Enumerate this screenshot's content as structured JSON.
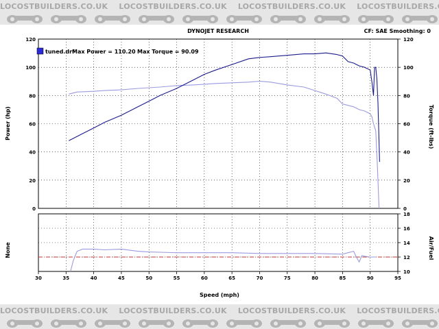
{
  "watermark": {
    "text": "LOCOSTBUILDERS.CO.UK",
    "color": "#a8a8a8"
  },
  "chart_data": {
    "type": "line",
    "header": {
      "title": "DYNOJET RESEARCH",
      "right": "CF: SAE  Smoothing: 0"
    },
    "legend": {
      "file": "tuned.drf",
      "max_power_label": "Max Power = 110.20",
      "max_torque_label": "Max Torque = 90.09",
      "swatch_color": "#2b2bd6"
    },
    "xlabel": "Speed (mph)",
    "xlim": [
      30,
      95
    ],
    "x_ticks": [
      "30",
      "35",
      "40",
      "45",
      "50",
      "55",
      "60",
      "65",
      "70",
      "75",
      "80",
      "85",
      "90",
      "95"
    ],
    "upper_panel": {
      "ylabel_left": "Power (hp)",
      "ylabel_right": "Torque (ft-lbs)",
      "ylim": [
        0,
        120
      ],
      "y_ticks": [
        "0",
        "20",
        "40",
        "60",
        "80",
        "100",
        "120"
      ],
      "series": [
        {
          "name": "Power",
          "color": "#1a1a8c",
          "x": [
            35.5,
            38,
            40,
            42,
            45,
            48,
            50,
            52,
            55,
            58,
            60,
            62,
            65,
            68,
            70,
            72,
            75,
            78,
            80,
            82,
            84,
            85,
            86,
            87,
            88,
            89,
            89.5,
            90,
            90.3,
            90.6,
            90.8,
            91,
            91.2,
            91.4,
            91.7
          ],
          "y": [
            48,
            53,
            57,
            61,
            66,
            72,
            76,
            80,
            85,
            91,
            95,
            98,
            102,
            106,
            107,
            107.5,
            108.5,
            109.5,
            109.5,
            110.2,
            109,
            108,
            104,
            103,
            101,
            100,
            99,
            98,
            90,
            80,
            100,
            100,
            92,
            75,
            33
          ]
        },
        {
          "name": "Torque",
          "color": "#9a9ae0",
          "x": [
            35.5,
            37,
            40,
            42,
            45,
            48,
            50,
            52,
            55,
            58,
            60,
            62,
            65,
            68,
            70,
            72,
            75,
            78,
            80,
            82,
            84,
            85,
            86,
            87,
            88,
            89,
            89.5,
            90,
            90.3,
            90.6,
            91,
            91.3,
            91.6
          ],
          "y": [
            81,
            82.5,
            83,
            83.5,
            84,
            85,
            85.5,
            86,
            87,
            87.5,
            88,
            88.5,
            89,
            89.5,
            90.1,
            89.5,
            87.5,
            86,
            83.5,
            81,
            78,
            74,
            73,
            72,
            70,
            69,
            68,
            67,
            65,
            60,
            55,
            30,
            0
          ]
        }
      ]
    },
    "lower_panel": {
      "ylabel_left": "None",
      "ylabel_right": "Air/Fuel",
      "ylim": [
        10,
        18
      ],
      "y_ticks": [
        "10",
        "12",
        "14",
        "16",
        "18"
      ],
      "reference_line": {
        "y": 12,
        "color": "#c03030",
        "style": "dash-dot"
      },
      "series": [
        {
          "name": "Air/Fuel",
          "color": "#9a9ae0",
          "x": [
            35.8,
            36.3,
            37,
            38,
            40,
            42,
            45,
            48,
            50,
            55,
            60,
            65,
            70,
            75,
            80,
            85,
            86,
            87,
            87.5,
            88,
            88.5,
            89,
            90,
            91
          ],
          "y": [
            10,
            11.5,
            12.8,
            13.1,
            13.1,
            13,
            13.1,
            12.8,
            12.7,
            12.6,
            12.6,
            12.6,
            12.5,
            12.5,
            12.5,
            12.4,
            12.6,
            12.8,
            12.0,
            11.3,
            12.2,
            12.1,
            12.0,
            12.0
          ]
        }
      ]
    },
    "grid": true,
    "grid_style": "dotted"
  }
}
